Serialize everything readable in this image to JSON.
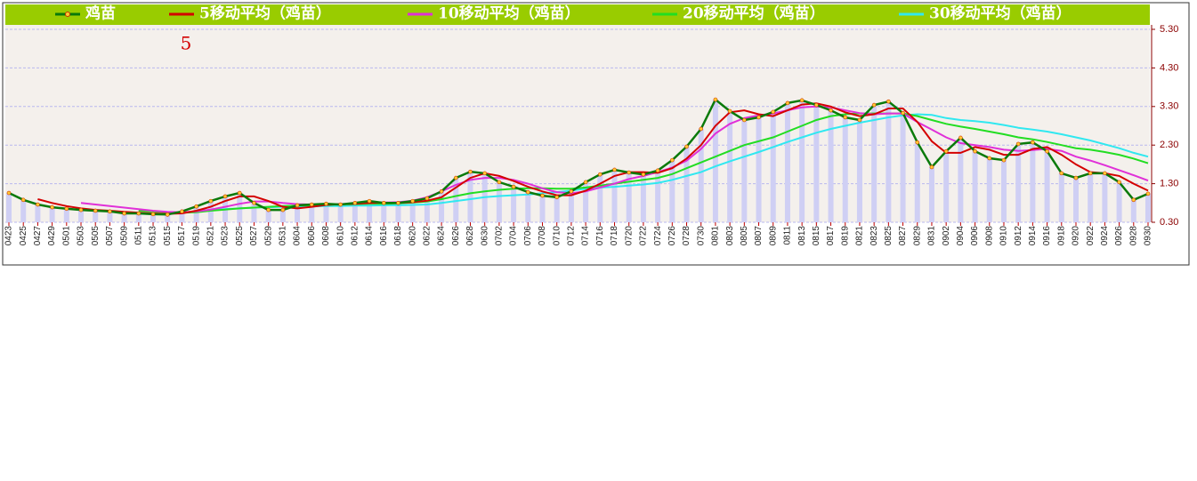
{
  "chart_data": {
    "type": "line",
    "categories": [
      "0423",
      "0425",
      "0427",
      "0429",
      "0501",
      "0503",
      "0505",
      "0507",
      "0509",
      "0511",
      "0513",
      "0515",
      "0517",
      "0519",
      "0521",
      "0523",
      "0525",
      "0527",
      "0529",
      "0531",
      "0604",
      "0606",
      "0608",
      "0610",
      "0612",
      "0614",
      "0616",
      "0618",
      "0620",
      "0622",
      "0624",
      "0626",
      "0628",
      "0630",
      "0702",
      "0704",
      "0706",
      "0708",
      "0710",
      "0712",
      "0714",
      "0716",
      "0718",
      "0720",
      "0722",
      "0724",
      "0726",
      "0728",
      "0730",
      "0801",
      "0803",
      "0805",
      "0807",
      "0809",
      "0811",
      "0813",
      "0815",
      "0817",
      "0819",
      "0821",
      "0823",
      "0825",
      "0827",
      "0829",
      "0831",
      "0902",
      "0904",
      "0906",
      "0908",
      "0910",
      "0912",
      "0914",
      "0916",
      "0918",
      "0920",
      "0922",
      "0924",
      "0926",
      "0928",
      "0930"
    ],
    "series": [
      {
        "name": "鸡苗",
        "color": "#0a7a0a",
        "values": [
          1.06,
          0.88,
          0.76,
          0.69,
          0.65,
          0.62,
          0.6,
          0.58,
          0.53,
          0.53,
          0.51,
          0.5,
          0.58,
          0.71,
          0.85,
          0.97,
          1.06,
          0.8,
          0.62,
          0.62,
          0.74,
          0.76,
          0.78,
          0.76,
          0.8,
          0.85,
          0.8,
          0.8,
          0.85,
          0.92,
          1.1,
          1.45,
          1.61,
          1.57,
          1.34,
          1.22,
          1.08,
          0.99,
          0.95,
          1.1,
          1.34,
          1.54,
          1.66,
          1.59,
          1.54,
          1.64,
          1.91,
          2.26,
          2.72,
          3.48,
          3.18,
          2.95,
          3.02,
          3.16,
          3.39,
          3.46,
          3.34,
          3.2,
          3.02,
          2.95,
          3.34,
          3.43,
          3.13,
          2.37,
          1.73,
          2.14,
          2.49,
          2.14,
          1.96,
          1.91,
          2.33,
          2.37,
          2.14,
          1.57,
          1.45,
          1.57,
          1.57,
          1.34,
          0.88,
          1.04
        ]
      },
      {
        "name": "5移动平均（鸡苗）",
        "color": "#d40000",
        "values": [
          null,
          null,
          0.9,
          0.8,
          0.72,
          0.66,
          0.62,
          0.6,
          0.57,
          0.55,
          0.53,
          0.52,
          0.53,
          0.6,
          0.7,
          0.85,
          0.97,
          0.97,
          0.85,
          0.7,
          0.66,
          0.7,
          0.75,
          0.77,
          0.78,
          0.8,
          0.81,
          0.8,
          0.82,
          0.86,
          0.95,
          1.2,
          1.45,
          1.57,
          1.5,
          1.37,
          1.22,
          1.1,
          1.0,
          1.0,
          1.12,
          1.3,
          1.5,
          1.6,
          1.6,
          1.58,
          1.7,
          1.95,
          2.3,
          2.8,
          3.15,
          3.2,
          3.1,
          3.05,
          3.2,
          3.35,
          3.38,
          3.3,
          3.15,
          3.05,
          3.1,
          3.25,
          3.25,
          2.9,
          2.4,
          2.1,
          2.1,
          2.25,
          2.18,
          2.05,
          2.05,
          2.2,
          2.25,
          2.05,
          1.8,
          1.6,
          1.57,
          1.5,
          1.3,
          1.12
        ]
      },
      {
        "name": "10移动平均（鸡苗）",
        "color": "#e030d8",
        "values": [
          null,
          null,
          null,
          null,
          null,
          0.8,
          0.76,
          0.72,
          0.68,
          0.64,
          0.6,
          0.57,
          0.56,
          0.58,
          0.63,
          0.7,
          0.78,
          0.84,
          0.84,
          0.8,
          0.77,
          0.76,
          0.76,
          0.77,
          0.79,
          0.8,
          0.81,
          0.82,
          0.86,
          0.95,
          1.1,
          1.27,
          1.4,
          1.45,
          1.45,
          1.4,
          1.3,
          1.18,
          1.08,
          1.05,
          1.1,
          1.2,
          1.3,
          1.42,
          1.5,
          1.6,
          1.72,
          1.9,
          2.2,
          2.6,
          2.85,
          3.0,
          3.07,
          3.12,
          3.2,
          3.28,
          3.3,
          3.28,
          3.2,
          3.13,
          3.1,
          3.12,
          3.12,
          2.9,
          2.7,
          2.5,
          2.35,
          2.3,
          2.25,
          2.18,
          2.15,
          2.17,
          2.2,
          2.15,
          2.0,
          1.9,
          1.78,
          1.65,
          1.52,
          1.38
        ]
      },
      {
        "name": "20移动平均（鸡苗）",
        "color": "#22dd22",
        "values": [
          null,
          null,
          null,
          null,
          null,
          null,
          null,
          null,
          null,
          0.6,
          0.58,
          0.56,
          0.55,
          0.56,
          0.6,
          0.63,
          0.66,
          0.68,
          0.7,
          0.72,
          0.73,
          0.74,
          0.75,
          0.76,
          0.77,
          0.78,
          0.78,
          0.79,
          0.81,
          0.84,
          0.9,
          0.98,
          1.05,
          1.1,
          1.14,
          1.17,
          1.18,
          1.18,
          1.17,
          1.17,
          1.2,
          1.25,
          1.3,
          1.35,
          1.4,
          1.45,
          1.55,
          1.7,
          1.85,
          2.0,
          2.15,
          2.3,
          2.4,
          2.5,
          2.65,
          2.8,
          2.95,
          3.05,
          3.1,
          3.12,
          3.12,
          3.12,
          3.12,
          3.05,
          2.95,
          2.85,
          2.78,
          2.72,
          2.65,
          2.58,
          2.5,
          2.45,
          2.38,
          2.3,
          2.22,
          2.18,
          2.12,
          2.05,
          1.95,
          1.83
        ]
      },
      {
        "name": "30移动平均（鸡苗）",
        "color": "#30e8f0",
        "values": [
          null,
          null,
          null,
          null,
          null,
          null,
          null,
          null,
          null,
          null,
          null,
          null,
          null,
          0.6,
          0.62,
          0.64,
          0.66,
          0.68,
          0.69,
          0.7,
          0.7,
          0.71,
          0.72,
          0.72,
          0.73,
          0.73,
          0.74,
          0.74,
          0.75,
          0.76,
          0.8,
          0.85,
          0.9,
          0.95,
          0.98,
          1.0,
          1.02,
          1.05,
          1.08,
          1.12,
          1.17,
          1.2,
          1.22,
          1.25,
          1.28,
          1.32,
          1.4,
          1.5,
          1.6,
          1.75,
          1.88,
          2.0,
          2.12,
          2.25,
          2.38,
          2.5,
          2.62,
          2.72,
          2.8,
          2.88,
          2.95,
          3.02,
          3.07,
          3.1,
          3.08,
          3.0,
          2.95,
          2.92,
          2.88,
          2.82,
          2.75,
          2.7,
          2.65,
          2.58,
          2.5,
          2.42,
          2.32,
          2.22,
          2.1,
          2.0
        ]
      }
    ],
    "ylim": [
      0.3,
      5.3
    ],
    "yticks": [
      {
        "value": 0.3,
        "label": "0.30"
      },
      {
        "value": 1.3,
        "label": "1.30"
      },
      {
        "value": 2.3,
        "label": "2.30"
      },
      {
        "value": 3.3,
        "label": "3.30"
      },
      {
        "value": 4.3,
        "label": "4.30"
      },
      {
        "value": 5.3,
        "label": "5.30"
      }
    ],
    "grid": true,
    "legend": "top",
    "annotation": "5"
  }
}
